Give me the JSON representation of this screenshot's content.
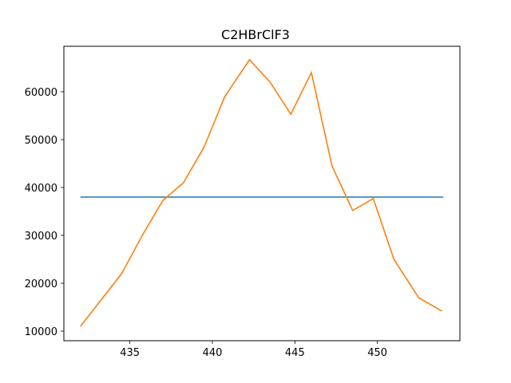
{
  "chart_data": {
    "type": "line",
    "title": "C2HBrClF3",
    "xlabel": "",
    "ylabel": "",
    "xlim": [
      431,
      455
    ],
    "ylim": [
      8000,
      69500
    ],
    "grid": false,
    "xticks": [
      435,
      440,
      445,
      450
    ],
    "yticks": [
      10000,
      20000,
      30000,
      40000,
      50000,
      60000
    ],
    "series": [
      {
        "color": "#1f77b4",
        "x": [
          432,
          454
        ],
        "y": [
          38000,
          38000
        ]
      },
      {
        "color": "#ff7f0e",
        "x": [
          432.0,
          433.25,
          434.5,
          435.75,
          437.0,
          438.25,
          439.5,
          440.75,
          442.25,
          443.5,
          444.75,
          446.0,
          447.25,
          448.5,
          449.75,
          451.0,
          452.5,
          453.9
        ],
        "y": [
          11000,
          16500,
          22000,
          30000,
          37300,
          41000,
          48500,
          59000,
          66700,
          62000,
          55300,
          64000,
          44500,
          35200,
          37700,
          25000,
          17000,
          14200
        ]
      }
    ]
  }
}
